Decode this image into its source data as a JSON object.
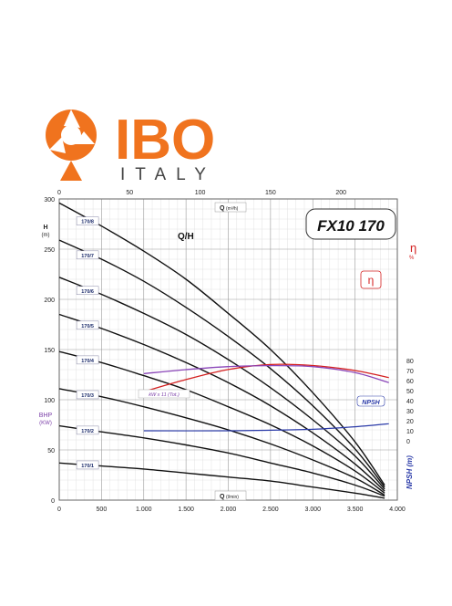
{
  "brand": {
    "logo_text": "IBO",
    "italy_text": "ITALY",
    "orange": "#f0731e",
    "flag_green": "#2a8c3a",
    "flag_red": "#c8202a"
  },
  "chart_data": {
    "type": "line",
    "title": "FX10 170",
    "label_qh": "Q/H",
    "label_eta": "η",
    "axes": {
      "y_left": {
        "label": "H",
        "unit": "(m)",
        "ylim": [
          0,
          300
        ],
        "ticks": [
          0,
          50,
          100,
          150,
          200,
          250,
          300
        ]
      },
      "y_bhp": {
        "label": "BHP",
        "unit": "(KW)"
      },
      "x_bottom": {
        "label": "Q",
        "unit": "(l/min)",
        "xlim": [
          0,
          4000
        ],
        "ticks": [
          0,
          500,
          1000,
          1500,
          2000,
          2500,
          3000,
          3500,
          4000
        ],
        "tick_labels": [
          "0",
          "500",
          "1.000",
          "1.500",
          "2.000",
          "2.500",
          "3.000",
          "3.500",
          "4.000"
        ]
      },
      "x_top": {
        "label": "Q",
        "unit": "(m³/h)",
        "xlim": [
          0,
          240
        ],
        "ticks": [
          0,
          50,
          100,
          150,
          200
        ]
      },
      "y_right_eta": {
        "label": "η",
        "unit": "%",
        "ylim": [
          0,
          90
        ],
        "ticks": [
          0,
          10,
          20,
          30,
          40,
          50,
          60,
          70,
          80
        ]
      },
      "y_right_npsh": {
        "label": "NPSH (m)"
      }
    },
    "grid": true,
    "head_curves": [
      {
        "name": "170/8",
        "x": [
          0,
          500,
          1000,
          1500,
          2000,
          2500,
          3000,
          3500,
          3850
        ],
        "y": [
          296,
          273,
          248,
          220,
          186,
          150,
          107,
          58,
          15
        ]
      },
      {
        "name": "170/7",
        "x": [
          0,
          500,
          1000,
          1500,
          2000,
          2500,
          3000,
          3500,
          3850
        ],
        "y": [
          259,
          240,
          218,
          192,
          163,
          131,
          94,
          51,
          13
        ]
      },
      {
        "name": "170/6",
        "x": [
          0,
          500,
          1000,
          1500,
          2000,
          2500,
          3000,
          3500,
          3850
        ],
        "y": [
          222,
          205,
          186,
          165,
          140,
          112,
          80,
          44,
          11
        ]
      },
      {
        "name": "170/5",
        "x": [
          0,
          500,
          1000,
          1500,
          2000,
          2500,
          3000,
          3500,
          3850
        ],
        "y": [
          185,
          171,
          155,
          137,
          117,
          94,
          67,
          36,
          9
        ]
      },
      {
        "name": "170/4",
        "x": [
          0,
          500,
          1000,
          1500,
          2000,
          2500,
          3000,
          3500,
          3850
        ],
        "y": [
          148,
          137,
          124,
          110,
          93,
          75,
          54,
          29,
          7
        ]
      },
      {
        "name": "170/3",
        "x": [
          0,
          500,
          1000,
          1500,
          2000,
          2500,
          3000,
          3500,
          3850
        ],
        "y": [
          111,
          103,
          93,
          82,
          70,
          56,
          40,
          22,
          5
        ]
      },
      {
        "name": "170/2",
        "x": [
          0,
          500,
          1000,
          1500,
          2000,
          2500,
          3000,
          3500,
          3850
        ],
        "y": [
          74,
          68,
          62,
          55,
          47,
          37,
          27,
          15,
          4
        ]
      },
      {
        "name": "170/1",
        "x": [
          0,
          500,
          1000,
          1500,
          2000,
          2500,
          3000,
          3500,
          3850
        ],
        "y": [
          37,
          34,
          31,
          27,
          23,
          19,
          13,
          7,
          2
        ]
      }
    ],
    "efficiency": {
      "name": "η",
      "x": [
        1000,
        1500,
        2000,
        2500,
        3000,
        3500,
        3900
      ],
      "y": [
        49,
        61,
        71,
        76,
        75,
        70,
        63
      ]
    },
    "power": {
      "name": "kW x 11 (Tot.)",
      "x": [
        1000,
        1500,
        2000,
        2500,
        3000,
        3500,
        3900
      ],
      "y": [
        126,
        130,
        133,
        134,
        133,
        127,
        117
      ]
    },
    "npsh": {
      "name": "NPSH",
      "x": [
        1000,
        2000,
        2500,
        3000,
        3500,
        3900
      ],
      "y": [
        10,
        10,
        10.5,
        11.5,
        14,
        17
      ]
    }
  }
}
